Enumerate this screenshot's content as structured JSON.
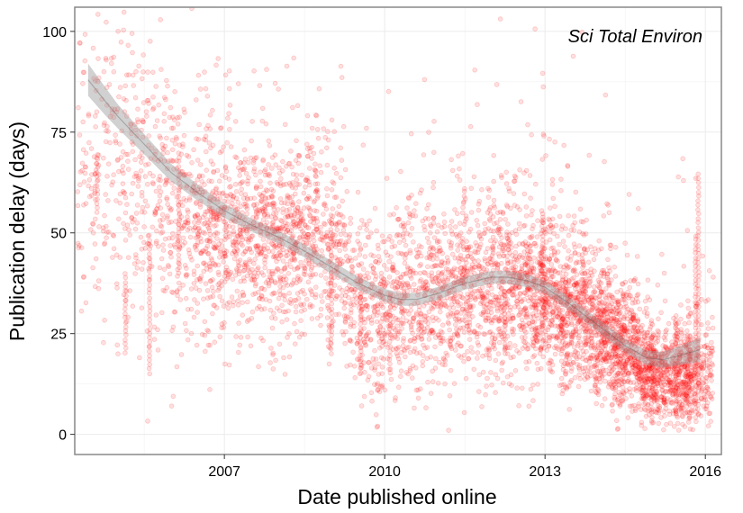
{
  "chart_data": {
    "type": "scatter",
    "title": "",
    "xlabel": "Date published online",
    "ylabel": "Publication delay (days)",
    "annotation": "Sci Total Environ",
    "xlim": [
      2004.2,
      2016.3
    ],
    "ylim": [
      -5,
      106
    ],
    "xticks": [
      2007,
      2010,
      2013,
      2016
    ],
    "yticks": [
      0,
      25,
      50,
      75,
      100
    ],
    "grid": true,
    "legend": "none",
    "point_color": "#ff0000",
    "point_opacity": 0.12,
    "smooth_color": "#555555",
    "smooth_band_color": "#999999",
    "point_density": [
      {
        "year": 2004.5,
        "mean": 68,
        "sd": 20,
        "count": 90
      },
      {
        "year": 2005.0,
        "mean": 66,
        "sd": 18,
        "count": 110
      },
      {
        "year": 2005.5,
        "mean": 60,
        "sd": 17,
        "count": 130
      },
      {
        "year": 2006.0,
        "mean": 55,
        "sd": 16,
        "count": 160
      },
      {
        "year": 2006.5,
        "mean": 50,
        "sd": 14,
        "count": 200
      },
      {
        "year": 2007.0,
        "mean": 49,
        "sd": 13,
        "count": 220
      },
      {
        "year": 2007.5,
        "mean": 48,
        "sd": 12,
        "count": 240
      },
      {
        "year": 2008.0,
        "mean": 47,
        "sd": 12,
        "count": 250
      },
      {
        "year": 2008.5,
        "mean": 49,
        "sd": 12,
        "count": 250
      },
      {
        "year": 2009.0,
        "mean": 45,
        "sd": 12,
        "count": 170
      },
      {
        "year": 2009.5,
        "mean": 33,
        "sd": 11,
        "count": 170
      },
      {
        "year": 2010.0,
        "mean": 30,
        "sd": 10,
        "count": 200
      },
      {
        "year": 2010.5,
        "mean": 33,
        "sd": 11,
        "count": 210
      },
      {
        "year": 2011.0,
        "mean": 35,
        "sd": 11,
        "count": 220
      },
      {
        "year": 2011.5,
        "mean": 36,
        "sd": 11,
        "count": 240
      },
      {
        "year": 2012.0,
        "mean": 36,
        "sd": 11,
        "count": 260
      },
      {
        "year": 2012.5,
        "mean": 35,
        "sd": 11,
        "count": 290
      },
      {
        "year": 2013.0,
        "mean": 34,
        "sd": 10,
        "count": 340
      },
      {
        "year": 2013.5,
        "mean": 30,
        "sd": 9,
        "count": 380
      },
      {
        "year": 2014.0,
        "mean": 26,
        "sd": 8,
        "count": 400
      },
      {
        "year": 2014.5,
        "mean": 21,
        "sd": 7,
        "count": 420
      },
      {
        "year": 2015.0,
        "mean": 15,
        "sd": 6,
        "count": 380
      },
      {
        "year": 2015.5,
        "mean": 14,
        "sd": 6,
        "count": 340
      },
      {
        "year": 2015.9,
        "mean": 14,
        "sd": 7,
        "count": 180
      }
    ],
    "smooth_fit": {
      "x": [
        2004.45,
        2004.75,
        2005.0,
        2005.5,
        2006.0,
        2006.5,
        2007.0,
        2007.5,
        2008.0,
        2008.5,
        2009.0,
        2009.5,
        2010.0,
        2010.3,
        2010.6,
        2011.0,
        2011.5,
        2012.0,
        2012.3,
        2012.7,
        2013.0,
        2013.5,
        2014.0,
        2014.5,
        2014.9,
        2015.2,
        2015.5,
        2015.9
      ],
      "y": [
        88,
        83,
        79,
        72,
        65,
        60,
        55.5,
        52,
        49,
        45.5,
        41.5,
        37.5,
        34.5,
        33.5,
        33.5,
        35,
        37.5,
        39,
        39,
        38,
        36.5,
        32,
        27,
        22,
        19,
        18.5,
        19.5,
        21
      ],
      "band_halfwidth": [
        4,
        3.5,
        3,
        2.5,
        2.2,
        2,
        1.8,
        1.6,
        1.6,
        1.6,
        1.6,
        1.6,
        1.6,
        1.6,
        1.6,
        1.6,
        1.6,
        1.6,
        1.6,
        1.6,
        1.6,
        1.6,
        1.6,
        1.7,
        1.8,
        2,
        2.3,
        3
      ]
    },
    "vertical_streaks": [
      {
        "year": 2004.62,
        "from": 55,
        "to": 70
      },
      {
        "year": 2005.15,
        "from": 20,
        "to": 40
      },
      {
        "year": 2005.6,
        "from": 15,
        "to": 50
      },
      {
        "year": 2006.15,
        "from": 40,
        "to": 70
      },
      {
        "year": 2009.0,
        "from": 20,
        "to": 55
      },
      {
        "year": 2009.55,
        "from": 15,
        "to": 40
      },
      {
        "year": 2010.1,
        "from": 15,
        "to": 35
      },
      {
        "year": 2012.25,
        "from": 20,
        "to": 35
      },
      {
        "year": 2012.95,
        "from": 25,
        "to": 55
      },
      {
        "year": 2015.0,
        "from": 3,
        "to": 25
      },
      {
        "year": 2015.45,
        "from": 5,
        "to": 30
      },
      {
        "year": 2015.82,
        "from": 3,
        "to": 50
      },
      {
        "year": 2015.87,
        "from": 5,
        "to": 65
      }
    ]
  }
}
